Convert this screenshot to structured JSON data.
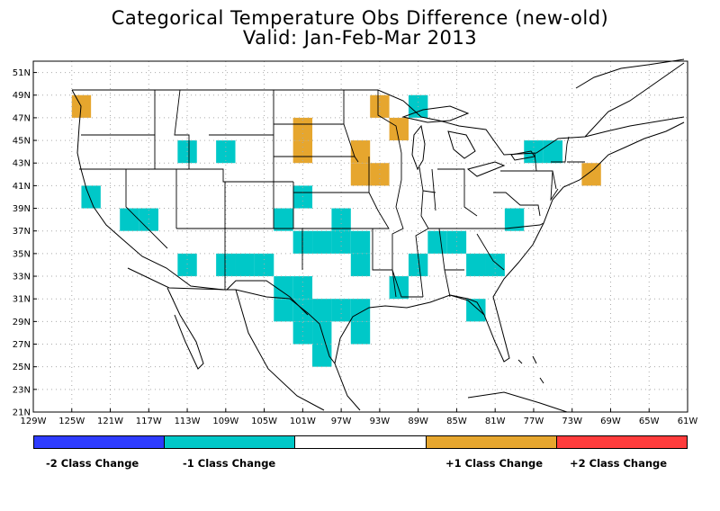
{
  "title": "Categorical Temperature Obs Difference (new-old)",
  "subtitle": "Valid: Jan-Feb-Mar 2013",
  "colors": {
    "minus2": "#2e3cff",
    "minus1": "#00c8c8",
    "zero": "#ffffff",
    "plus1": "#e6a62e",
    "plus2": "#ff3c3c",
    "grid": "#aaaaaa",
    "boundary": "#000000"
  },
  "axes": {
    "lon_ticks": [
      "129W",
      "125W",
      "121W",
      "117W",
      "113W",
      "109W",
      "105W",
      "101W",
      "97W",
      "93W",
      "89W",
      "85W",
      "81W",
      "77W",
      "73W",
      "69W",
      "65W",
      "61W"
    ],
    "lat_ticks": [
      "21N",
      "23N",
      "25N",
      "27N",
      "29N",
      "31N",
      "33N",
      "35N",
      "37N",
      "39N",
      "41N",
      "43N",
      "45N",
      "47N",
      "49N",
      "51N"
    ],
    "lon_range": [
      -129,
      -61
    ],
    "lat_range": [
      21,
      52
    ],
    "grid": true
  },
  "legend": {
    "labels": [
      "-2 Class Change",
      "-1 Class Change",
      "+1 Class Change",
      "+2 Class Change"
    ]
  },
  "chart_data": {
    "type": "heatmap",
    "cell_size_deg": 2,
    "values_meaning": "categorical temperature class change (new-old)",
    "cells": [
      {
        "lon": -124,
        "lat": 48,
        "value": 1
      },
      {
        "lon": -93,
        "lat": 48,
        "value": 1
      },
      {
        "lon": -91,
        "lat": 46,
        "value": 1
      },
      {
        "lon": -101,
        "lat": 46,
        "value": 1
      },
      {
        "lon": -101,
        "lat": 44,
        "value": 1
      },
      {
        "lon": -95,
        "lat": 44,
        "value": 1
      },
      {
        "lon": -95,
        "lat": 42,
        "value": 1
      },
      {
        "lon": -93,
        "lat": 42,
        "value": 1
      },
      {
        "lon": -71,
        "lat": 42,
        "value": 1
      },
      {
        "lon": -89,
        "lat": 48,
        "value": -1
      },
      {
        "lon": -113,
        "lat": 44,
        "value": -1
      },
      {
        "lon": -109,
        "lat": 44,
        "value": -1
      },
      {
        "lon": -77,
        "lat": 44,
        "value": -1
      },
      {
        "lon": -75,
        "lat": 44,
        "value": -1
      },
      {
        "lon": -123,
        "lat": 40,
        "value": -1
      },
      {
        "lon": -101,
        "lat": 40,
        "value": -1
      },
      {
        "lon": -119,
        "lat": 38,
        "value": -1
      },
      {
        "lon": -117,
        "lat": 38,
        "value": -1
      },
      {
        "lon": -103,
        "lat": 38,
        "value": -1
      },
      {
        "lon": -97,
        "lat": 38,
        "value": -1
      },
      {
        "lon": -79,
        "lat": 38,
        "value": -1
      },
      {
        "lon": -101,
        "lat": 36,
        "value": -1
      },
      {
        "lon": -99,
        "lat": 36,
        "value": -1
      },
      {
        "lon": -97,
        "lat": 36,
        "value": -1
      },
      {
        "lon": -95,
        "lat": 36,
        "value": -1
      },
      {
        "lon": -87,
        "lat": 36,
        "value": -1
      },
      {
        "lon": -85,
        "lat": 36,
        "value": -1
      },
      {
        "lon": -95,
        "lat": 34,
        "value": -1
      },
      {
        "lon": -89,
        "lat": 34,
        "value": -1
      },
      {
        "lon": -83,
        "lat": 34,
        "value": -1
      },
      {
        "lon": -81,
        "lat": 34,
        "value": -1
      },
      {
        "lon": -113,
        "lat": 34,
        "value": -1
      },
      {
        "lon": -109,
        "lat": 34,
        "value": -1
      },
      {
        "lon": -107,
        "lat": 34,
        "value": -1
      },
      {
        "lon": -105,
        "lat": 34,
        "value": -1
      },
      {
        "lon": -103,
        "lat": 32,
        "value": -1
      },
      {
        "lon": -101,
        "lat": 32,
        "value": -1
      },
      {
        "lon": -91,
        "lat": 32,
        "value": -1
      },
      {
        "lon": -103,
        "lat": 30,
        "value": -1
      },
      {
        "lon": -101,
        "lat": 30,
        "value": -1
      },
      {
        "lon": -99,
        "lat": 30,
        "value": -1
      },
      {
        "lon": -97,
        "lat": 30,
        "value": -1
      },
      {
        "lon": -95,
        "lat": 30,
        "value": -1
      },
      {
        "lon": -83,
        "lat": 30,
        "value": -1
      },
      {
        "lon": -101,
        "lat": 28,
        "value": -1
      },
      {
        "lon": -99,
        "lat": 28,
        "value": -1
      },
      {
        "lon": -95,
        "lat": 28,
        "value": -1
      },
      {
        "lon": -99,
        "lat": 26,
        "value": -1
      }
    ]
  }
}
